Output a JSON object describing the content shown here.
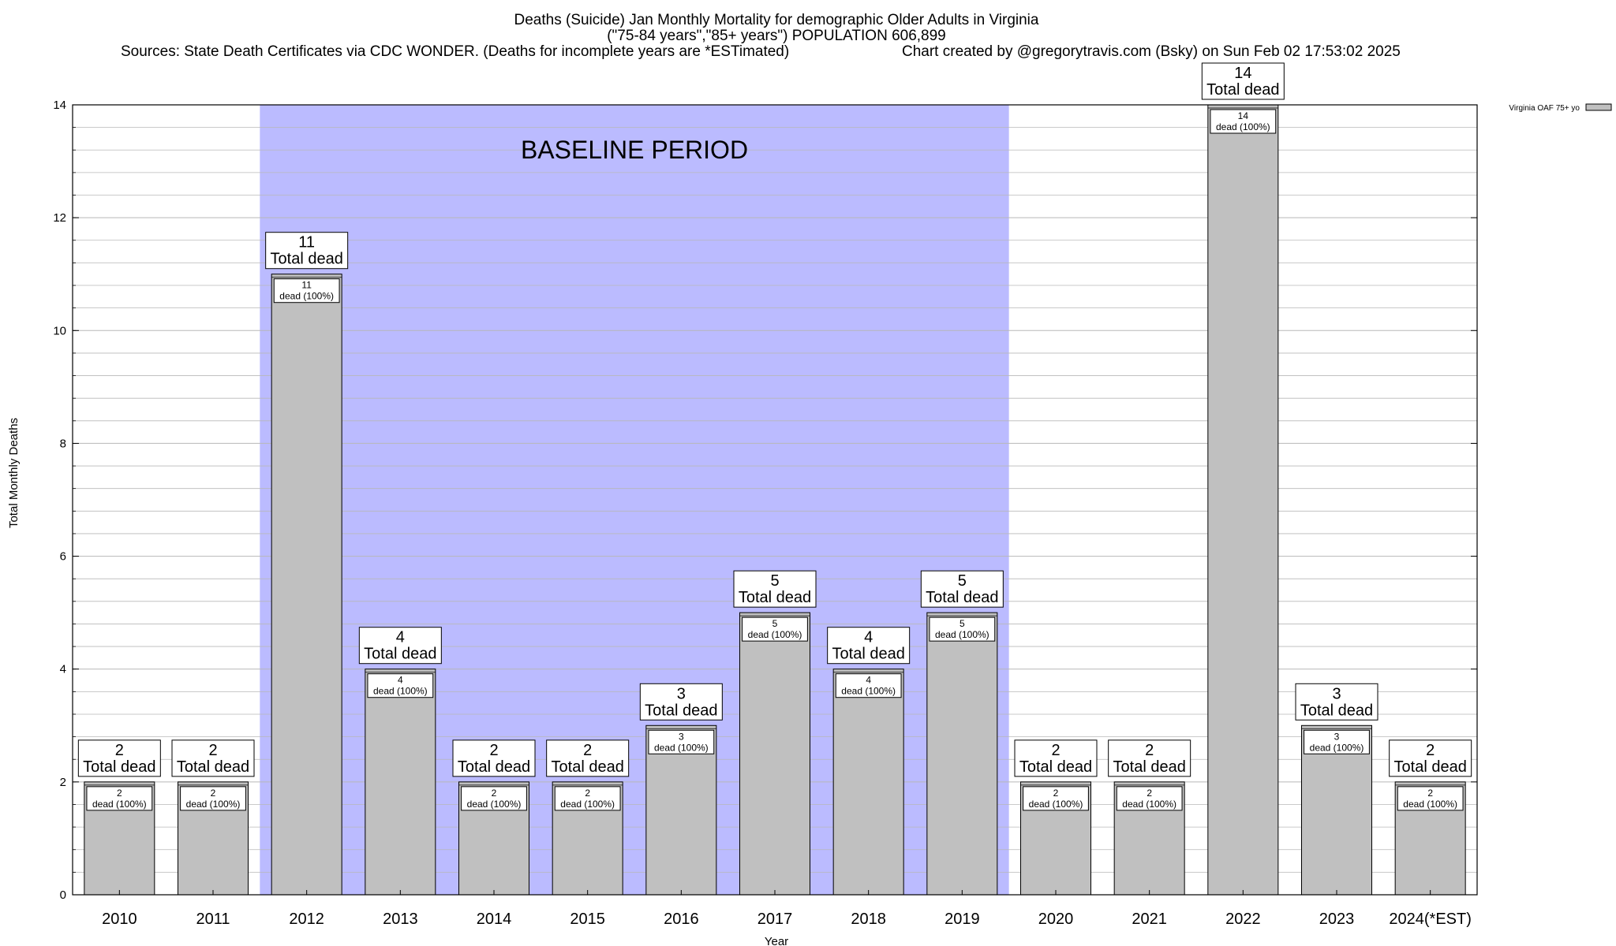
{
  "chart_data": {
    "type": "bar",
    "title_lines": [
      "Deaths (Suicide) Jan Monthly Mortality for demographic Older Adults in Virginia",
      "(\"75-84 years\",\"85+ years\") POPULATION 606,899"
    ],
    "sources_text": "Sources: State Death Certificates via CDC WONDER. (Deaths for incomplete years are *ESTimated)",
    "credit_text": "Chart created by @gregorytravis.com (Bsky) on Sun Feb 02 17:53:02 2025",
    "xlabel": "Year",
    "ylabel": "Total Monthly Deaths",
    "ylim": [
      0,
      14
    ],
    "y_ticks": [
      0,
      2,
      4,
      6,
      8,
      10,
      12,
      14
    ],
    "grid": "horizontal",
    "categories": [
      "2010",
      "2011",
      "2012",
      "2013",
      "2014",
      "2015",
      "2016",
      "2017",
      "2018",
      "2019",
      "2020",
      "2021",
      "2022",
      "2023",
      "2024(*EST)"
    ],
    "series": [
      {
        "name": "Virginia OAF 75+ yo",
        "values": [
          2,
          2,
          11,
          4,
          2,
          2,
          3,
          5,
          4,
          5,
          2,
          2,
          14,
          3,
          2
        ]
      }
    ],
    "total_label_text": "Total dead",
    "inner_label_text": "dead (100%)",
    "baseline_period": {
      "label": "BASELINE PERIOD",
      "start_category": "2012",
      "end_category": "2019"
    },
    "legend_placement": "top-right",
    "colors": {
      "bar_fill": "#c0c0c0",
      "bar_stroke": "#000000",
      "baseline_fill": "#bbbbff",
      "grid": "#b8b8b8",
      "label_box_fill": "#ffffff"
    }
  }
}
